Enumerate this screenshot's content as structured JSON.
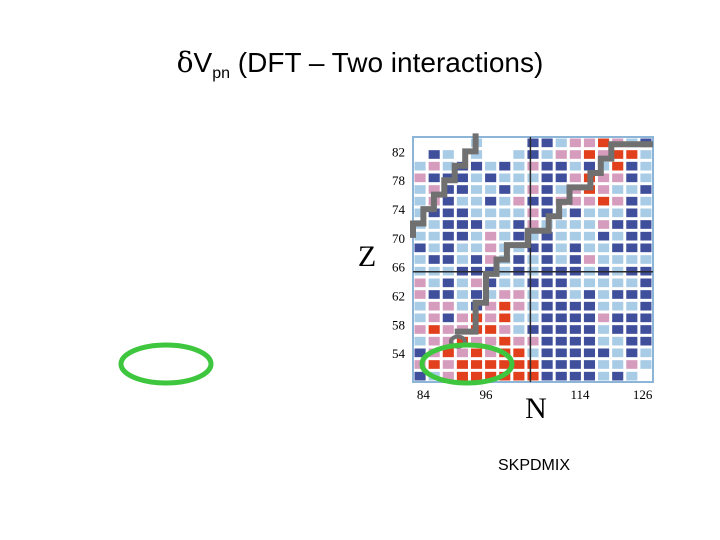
{
  "title": {
    "delta": "δ",
    "main": "V",
    "subscript": "pn",
    "rest": " (DFT – Two interactions)"
  },
  "caption": "SKPDMIX",
  "chart_data": {
    "type": "heatmap",
    "xlabel": "N",
    "ylabel": "Z",
    "x_ticks": [
      "84",
      "96",
      "114",
      "126"
    ],
    "y_ticks": [
      "82",
      "78",
      "74",
      "70",
      "66",
      "62",
      "58",
      "54"
    ],
    "x_tick_values": [
      84,
      96,
      114,
      126
    ],
    "y_tick_values": [
      82,
      78,
      74,
      70,
      66,
      62,
      58,
      54
    ],
    "xlim": [
      82,
      128
    ],
    "ylim": [
      50,
      84
    ],
    "cell_step": 2,
    "colors": {
      "N": "#3f4f9c",
      "L": "#a9cce6",
      "P": "#d59cbd",
      "R": "#e2401c",
      "background": "#ffffff",
      "frame": "#8db5d8",
      "magic_line": "#2a2a2a",
      "path": "#707070",
      "ellipse": "#3ec63e"
    },
    "legend_codes": {
      "N": "dark blue",
      "L": "light blue",
      "P": "pink",
      "R": "red",
      ".": "empty"
    },
    "grid_rows": [
      "....L...NNLPPRPLN",
      ".NL.L..LNLPPRPRRL",
      "LPLNNLNLPNNLNLRNL",
      "PNNNLNLLLNNPRPPNL",
      "LPNNLLNLPNLPRPLLN",
      "LPNLLNLPNNPPPRPNL",
      "LNNNLLLLPNLNLLLNL",
      "LLNNNLLNPLLLLPNNN",
      "LLNNLPLNLNLLLNLNN",
      "NLNLLPLLNNLNLLNNN",
      "LNNLNPLNLNLNPLLLL",
      "LLLNNNLNLNNNLNLNN",
      "PLNLPNLLNNNLLLLLN",
      "PNNLNLPPLNNLNLNNN",
      "LPPLNPRPLNNNNLLLN",
      "LPNPRPRLLNNNNPNNN",
      "PRPPRRPLNNNNNLNNN",
      "LPPRPPRPPNNNNLLNN",
      "NPRPRPRRLNNNNNLNL",
      "PRPRRRRRRNNNNLLPL",
      "NLPRRRRRRNNNNLNL."
    ]
  }
}
